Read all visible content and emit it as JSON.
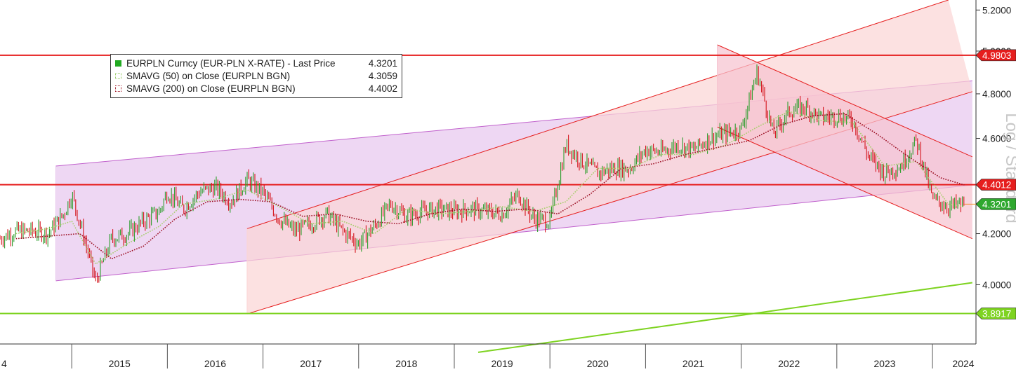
{
  "chart_data": {
    "type": "line",
    "scale": "log",
    "ylabel": "Log / Standard",
    "ylim": [
      3.78,
      5.25
    ],
    "y_ticks": [
      "4.0000",
      "4.2000",
      "4.4000",
      "4.6000",
      "4.8000",
      "5.0000",
      "5.2000"
    ],
    "x_ticks": [
      "4",
      "2015",
      "2016",
      "2017",
      "2018",
      "2019",
      "2020",
      "2021",
      "2022",
      "2023",
      "2024"
    ],
    "xlim": [
      "2014-04-01",
      "2024-06-15"
    ],
    "grid": false,
    "legend_position": "top-left",
    "legend": [
      {
        "name": "EURPLN Curncy (EUR-PLN X-RATE) - Last Price",
        "value": "4.3201",
        "color": "#22aa22"
      },
      {
        "name": "SMAVG (50)  on Close (EURPLN BGN)",
        "value": "4.3059",
        "color": "#b7d97a"
      },
      {
        "name": "SMAVG (200)  on Close (EURPLN BGN)",
        "value": "4.4002",
        "color": "#a01020"
      }
    ],
    "level_lines": [
      {
        "value": 4.9803,
        "label": "4.9803",
        "color": "#e61e1e"
      },
      {
        "value": 4.4012,
        "label": "4.4012",
        "color": "#e61e1e"
      },
      {
        "value": 3.8917,
        "label": "3.8917",
        "color": "#7ed321"
      }
    ],
    "last_price_label": {
      "value": 4.3201,
      "label": "4.3201",
      "color": "#2ea82e"
    },
    "series": [
      {
        "name": "EURPLN Curncy (EUR-PLN X-RATE) - Last Price",
        "style": "ohlc-bars",
        "x": [
          "2014-04",
          "2014-06",
          "2014-08",
          "2014-10",
          "2014-12",
          "2015-01",
          "2015-03",
          "2015-04",
          "2015-06",
          "2015-08",
          "2015-10",
          "2015-12",
          "2016-01",
          "2016-03",
          "2016-05",
          "2016-07",
          "2016-09",
          "2016-11",
          "2017-01",
          "2017-03",
          "2017-05",
          "2017-07",
          "2017-09",
          "2017-11",
          "2018-01",
          "2018-03",
          "2018-05",
          "2018-07",
          "2018-09",
          "2018-11",
          "2019-01",
          "2019-03",
          "2019-05",
          "2019-07",
          "2019-09",
          "2019-11",
          "2020-01",
          "2020-03",
          "2020-05",
          "2020-07",
          "2020-09",
          "2020-11",
          "2021-01",
          "2021-03",
          "2021-05",
          "2021-07",
          "2021-09",
          "2021-11",
          "2022-01",
          "2022-03",
          "2022-05",
          "2022-07",
          "2022-09",
          "2022-11",
          "2023-01",
          "2023-03",
          "2023-05",
          "2023-07",
          "2023-09",
          "2023-11",
          "2024-01",
          "2024-03",
          "2024-05"
        ],
        "values": [
          4.18,
          4.21,
          4.21,
          4.2,
          4.28,
          4.36,
          4.13,
          4.01,
          4.18,
          4.2,
          4.25,
          4.29,
          4.37,
          4.3,
          4.37,
          4.39,
          4.33,
          4.42,
          4.37,
          4.26,
          4.21,
          4.24,
          4.28,
          4.21,
          4.16,
          4.23,
          4.32,
          4.27,
          4.29,
          4.3,
          4.29,
          4.3,
          4.29,
          4.28,
          4.36,
          4.26,
          4.25,
          4.57,
          4.5,
          4.45,
          4.47,
          4.47,
          4.55,
          4.54,
          4.57,
          4.55,
          4.6,
          4.62,
          4.64,
          4.9,
          4.62,
          4.72,
          4.74,
          4.69,
          4.7,
          4.68,
          4.52,
          4.45,
          4.48,
          4.59,
          4.34,
          4.31,
          4.32
        ]
      },
      {
        "name": "SMAVG (50)  on Close (EURPLN BGN)",
        "style": "dotted",
        "x": [
          "2014-06",
          "2014-10",
          "2015-01",
          "2015-04",
          "2015-08",
          "2015-12",
          "2016-03",
          "2016-07",
          "2016-11",
          "2017-03",
          "2017-07",
          "2017-11",
          "2018-03",
          "2018-07",
          "2018-11",
          "2019-03",
          "2019-07",
          "2019-11",
          "2020-03",
          "2020-07",
          "2020-11",
          "2021-03",
          "2021-07",
          "2021-11",
          "2022-03",
          "2022-07",
          "2022-11",
          "2023-03",
          "2023-07",
          "2023-11",
          "2024-03",
          "2024-05"
        ],
        "values": [
          4.2,
          4.22,
          4.25,
          4.08,
          4.16,
          4.23,
          4.32,
          4.34,
          4.38,
          4.31,
          4.24,
          4.25,
          4.2,
          4.3,
          4.28,
          4.29,
          4.31,
          4.29,
          4.33,
          4.47,
          4.47,
          4.53,
          4.53,
          4.57,
          4.65,
          4.72,
          4.68,
          4.67,
          4.48,
          4.5,
          4.32,
          4.31
        ]
      },
      {
        "name": "SMAVG (200)  on Close (EURPLN BGN)",
        "style": "dotted",
        "x": [
          "2014-06",
          "2014-10",
          "2015-02",
          "2015-06",
          "2015-10",
          "2016-02",
          "2016-06",
          "2016-10",
          "2017-02",
          "2017-06",
          "2017-10",
          "2018-02",
          "2018-06",
          "2018-10",
          "2019-02",
          "2019-06",
          "2019-10",
          "2020-02",
          "2020-06",
          "2020-10",
          "2021-02",
          "2021-06",
          "2021-10",
          "2022-02",
          "2022-06",
          "2022-10",
          "2023-02",
          "2023-06",
          "2023-10",
          "2024-02",
          "2024-05"
        ],
        "values": [
          4.18,
          4.19,
          4.2,
          4.1,
          4.15,
          4.26,
          4.33,
          4.34,
          4.33,
          4.27,
          4.28,
          4.25,
          4.24,
          4.28,
          4.3,
          4.29,
          4.3,
          4.28,
          4.36,
          4.47,
          4.49,
          4.53,
          4.56,
          4.59,
          4.66,
          4.7,
          4.71,
          4.62,
          4.52,
          4.43,
          4.4
        ]
      }
    ],
    "channels": [
      {
        "color": "#e8c8ee",
        "line": "#c060cc",
        "top": [
          [
            "2014-11",
            4.48
          ],
          [
            "2024-06",
            4.86
          ]
        ],
        "bottom": [
          [
            "2014-11",
            4.015
          ],
          [
            "2024-06",
            4.4
          ]
        ]
      },
      {
        "color": "#fbd6d6",
        "line": "#e61e1e",
        "top": [
          [
            "2016-11",
            4.22
          ],
          [
            "2024-03",
            5.25
          ]
        ],
        "bottom": [
          [
            "2016-11",
            3.89
          ],
          [
            "2024-06",
            4.81
          ]
        ]
      },
      {
        "color": "#f6c4d0",
        "line": "#e61e1e",
        "top": [
          [
            "2021-10",
            5.03
          ],
          [
            "2024-06",
            4.52
          ]
        ],
        "bottom": [
          [
            "2021-10",
            4.65
          ],
          [
            "2024-06",
            4.18
          ]
        ]
      }
    ],
    "trend_lines": [
      {
        "color": "#7ed321",
        "points": [
          [
            "2019-04",
            3.75
          ],
          [
            "2024-06",
            4.008
          ]
        ]
      }
    ]
  }
}
